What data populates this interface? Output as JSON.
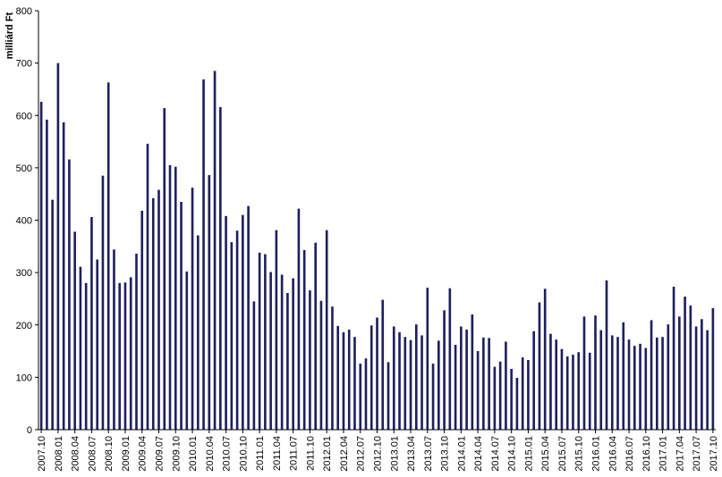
{
  "chart_data": {
    "type": "bar",
    "ylabel": "milliárd Ft",
    "ylim": [
      0,
      800
    ],
    "yticks": [
      0,
      100,
      200,
      300,
      400,
      500,
      600,
      700,
      800
    ],
    "grid": false,
    "legend": "none",
    "bar_color": "#1f1f5e",
    "x_tick_labels": [
      "2007.10",
      "2008.01",
      "2008.04",
      "2008.07",
      "2008.10",
      "2009.01",
      "2009.04",
      "2009.07",
      "2009.10",
      "2010.01",
      "2010.04",
      "2010.07",
      "2010.10",
      "2011.01",
      "2011.04",
      "2011.07",
      "2011.10",
      "2012.01",
      "2012.04",
      "2012.07",
      "2012.10",
      "2013.01",
      "2013.04",
      "2013.07",
      "2013.10",
      "2014.01",
      "2014.04",
      "2014.07",
      "2014.10",
      "2015.01",
      "2015.04",
      "2015.07",
      "2015.10",
      "2016.01",
      "2016.04",
      "2016.07",
      "2016.10",
      "2017.01",
      "2017.04",
      "2017.07",
      "2017.10"
    ],
    "values": [
      626,
      592,
      439,
      700,
      587,
      516,
      378,
      311,
      280,
      406,
      325,
      485,
      663,
      344,
      280,
      281,
      291,
      336,
      418,
      546,
      442,
      458,
      614,
      505,
      502,
      435,
      302,
      462,
      371,
      669,
      486,
      685,
      616,
      408,
      358,
      380,
      410,
      427,
      245,
      338,
      335,
      301,
      381,
      296,
      261,
      289,
      422,
      343,
      266,
      357,
      246,
      381,
      235,
      198,
      186,
      191,
      177,
      126,
      136,
      199,
      214,
      248,
      129,
      197,
      186,
      177,
      171,
      201,
      180,
      271,
      126,
      170,
      228,
      270,
      162,
      197,
      191,
      220,
      150,
      176,
      175,
      120,
      130,
      168,
      116,
      99,
      138,
      133,
      188,
      243,
      269,
      183,
      172,
      154,
      140,
      143,
      148,
      216,
      147,
      218,
      190,
      285,
      180,
      177,
      205,
      172,
      160,
      164,
      156,
      209,
      176,
      177,
      201,
      273,
      216,
      254,
      237,
      197,
      211,
      190,
      232
    ]
  }
}
